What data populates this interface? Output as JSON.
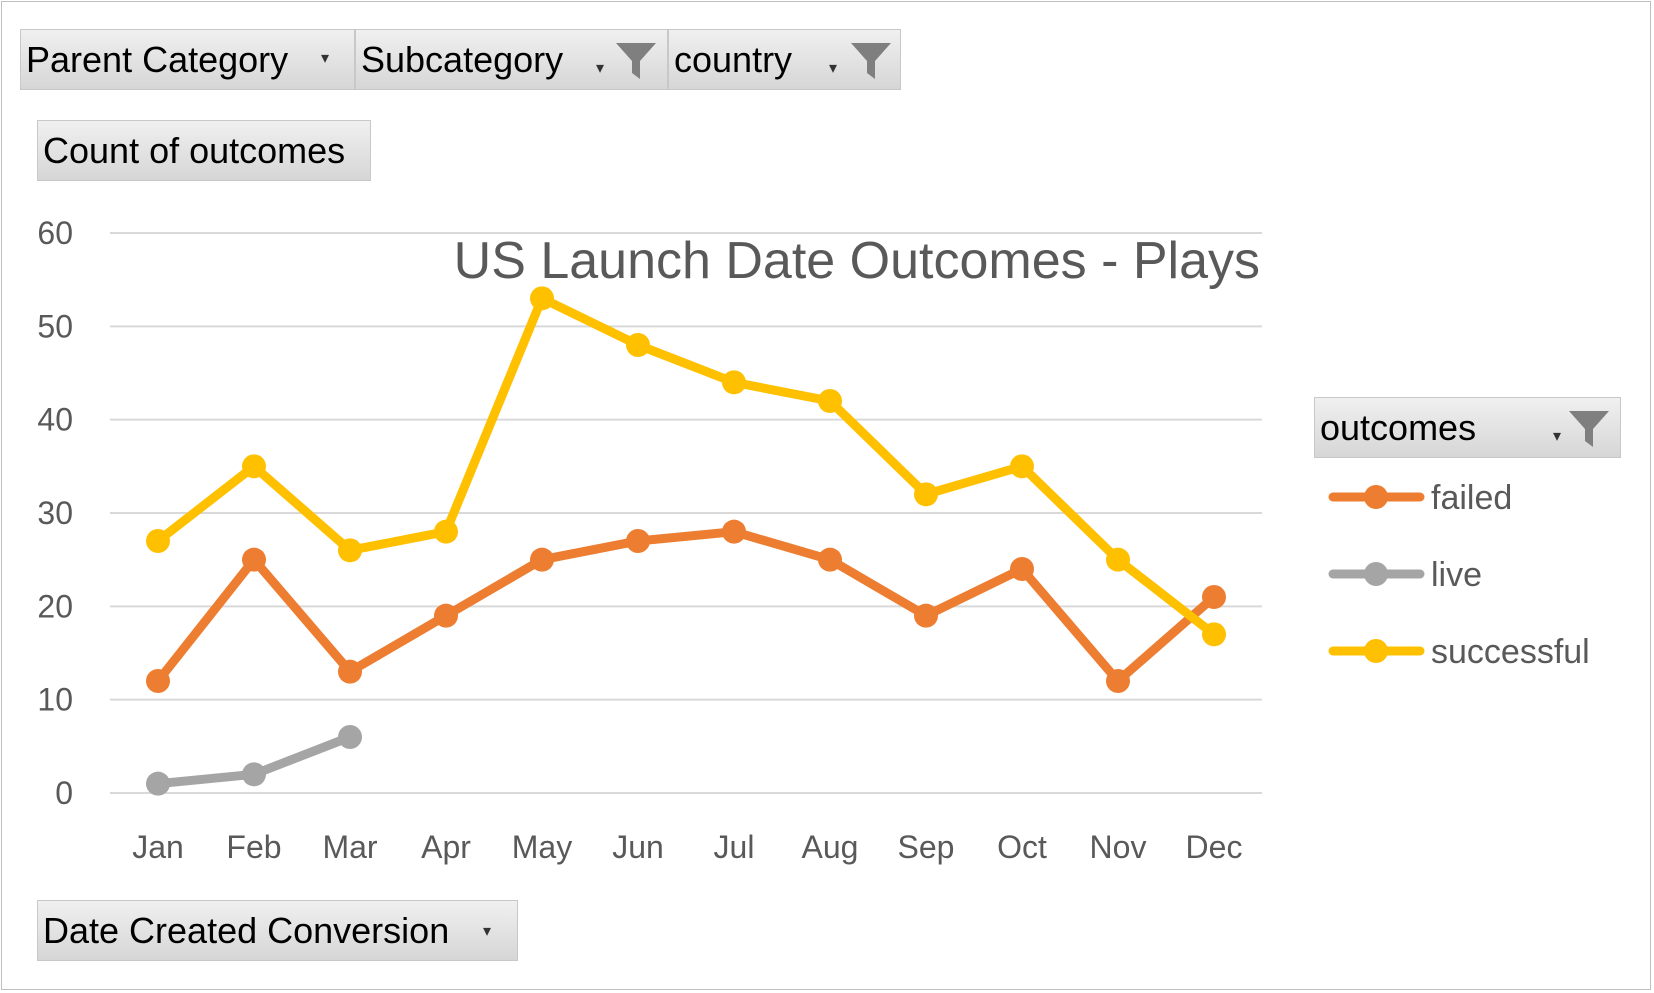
{
  "filters": {
    "parent_category": "Parent Category",
    "subcategory": "Subcategory",
    "country": "country",
    "values_field": "Count of outcomes",
    "legend_field": "outcomes",
    "axis_field": "Date Created Conversion"
  },
  "chart_data": {
    "type": "line",
    "title": "US Launch Date Outcomes - Plays",
    "categories": [
      "Jan",
      "Feb",
      "Mar",
      "Apr",
      "May",
      "Jun",
      "Jul",
      "Aug",
      "Sep",
      "Oct",
      "Nov",
      "Dec"
    ],
    "ylim": [
      0,
      60
    ],
    "yticks": [
      0,
      10,
      20,
      30,
      40,
      50,
      60
    ],
    "grid": true,
    "legend_position": "right",
    "series": [
      {
        "name": "failed",
        "color": "#ed7d31",
        "values": [
          12,
          25,
          13,
          19,
          25,
          27,
          28,
          25,
          19,
          24,
          12,
          21
        ]
      },
      {
        "name": "live",
        "color": "#a5a5a5",
        "values": [
          1,
          2,
          6,
          null,
          null,
          null,
          null,
          null,
          null,
          null,
          null,
          null
        ]
      },
      {
        "name": "successful",
        "color": "#ffc000",
        "values": [
          27,
          35,
          26,
          28,
          53,
          48,
          44,
          42,
          32,
          35,
          25,
          17
        ]
      }
    ]
  }
}
